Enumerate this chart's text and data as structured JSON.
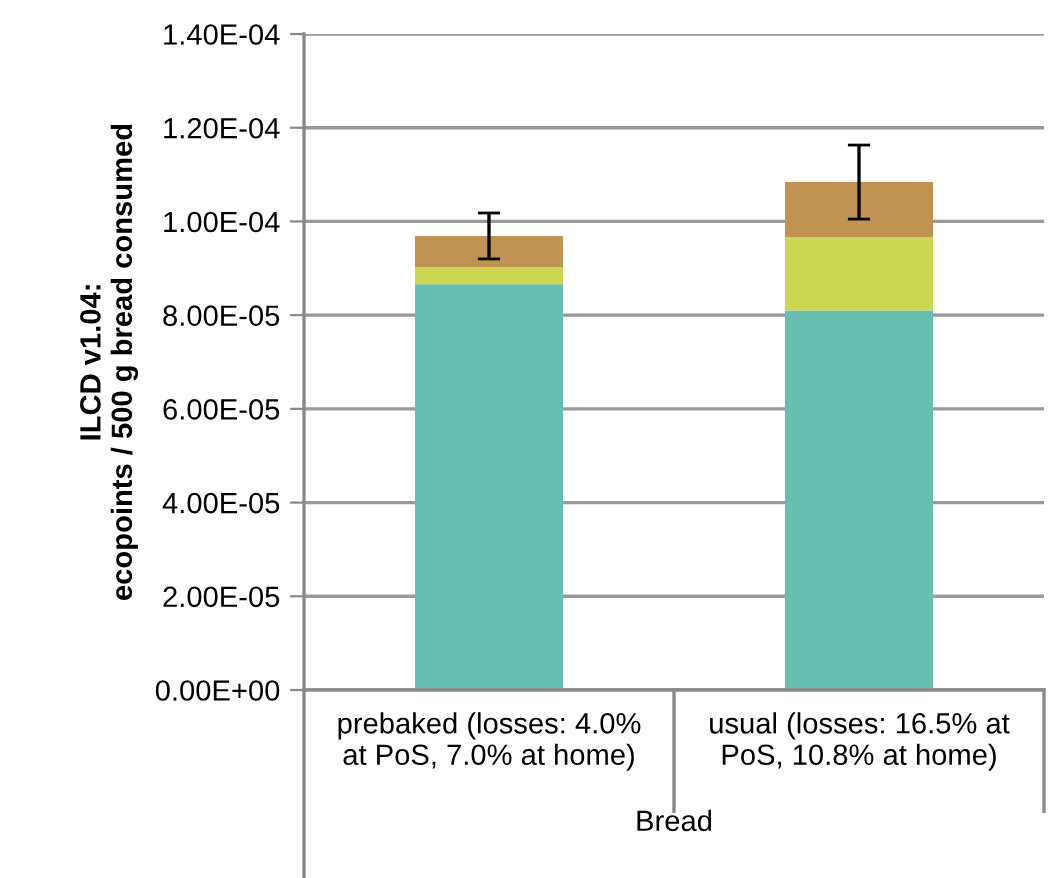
{
  "chart_data": {
    "type": "bar",
    "stacked": true,
    "ylabel": "ILCD v1.04:\necopoints / 500 g bread consumed",
    "xlabel": "Bread",
    "categories": [
      "prebaked (losses: 4.0%\nat PoS, 7.0% at home)",
      "usual (losses: 16.5% at\nPoS, 10.8% at home)"
    ],
    "series": [
      {
        "color": "#67bfb2",
        "values": [
          8.66e-05,
          8.1e-05
        ]
      },
      {
        "color": "#cbd651",
        "values": [
          3.7e-06,
          1.56e-05
        ]
      },
      {
        "color": "#c09352",
        "values": [
          6.6e-06,
          1.18e-05
        ],
        "errors": [
          4.9e-06,
          7.9e-06
        ]
      }
    ],
    "ylim": [
      0,
      0.00014
    ],
    "yticks": [
      {
        "value": 0,
        "label": "0.00E+00"
      },
      {
        "value": 2e-05,
        "label": "2.00E-05"
      },
      {
        "value": 4e-05,
        "label": "4.00E-05"
      },
      {
        "value": 6e-05,
        "label": "6.00E-05"
      },
      {
        "value": 8e-05,
        "label": "8.00E-05"
      },
      {
        "value": 0.0001,
        "label": "1.00E-04"
      },
      {
        "value": 0.00012,
        "label": "1.20E-04"
      },
      {
        "value": 0.00014,
        "label": "1.40E-04"
      }
    ],
    "grid": "y"
  }
}
